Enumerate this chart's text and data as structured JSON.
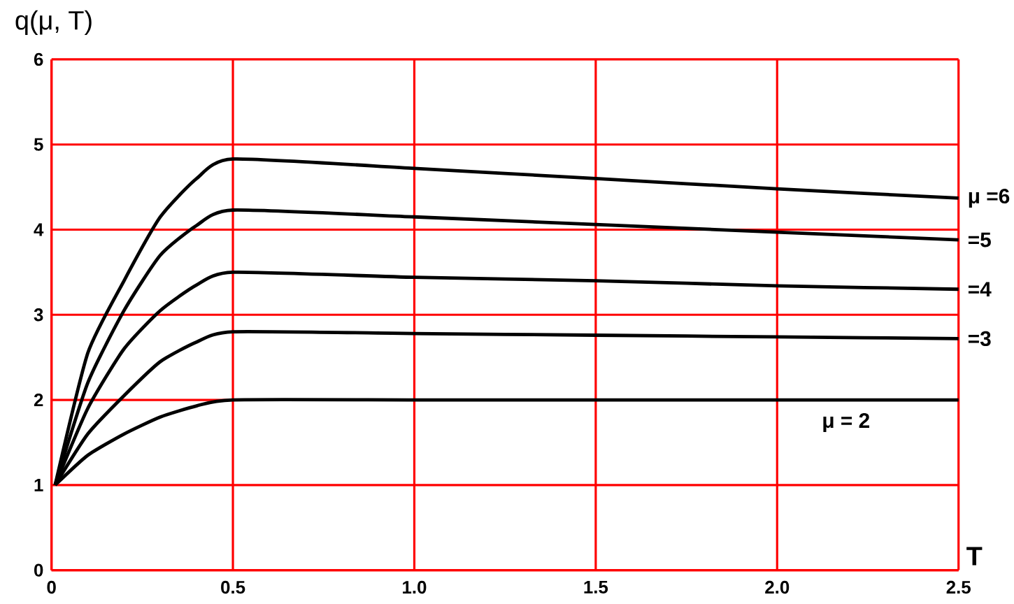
{
  "chart_data": {
    "type": "line",
    "ylabel": "q(μ, T)",
    "xlabel": "T",
    "x": [
      0.01,
      0.1,
      0.2,
      0.3,
      0.4,
      0.5,
      1.0,
      1.5,
      2.0,
      2.5
    ],
    "series": [
      {
        "name": "μ =6",
        "color": "#000000",
        "values": [
          1,
          2.55,
          3.4,
          4.15,
          4.6,
          4.83,
          4.72,
          4.6,
          4.48,
          4.37
        ]
      },
      {
        "name": "=5",
        "color": "#000000",
        "values": [
          1,
          2.2,
          3.05,
          3.7,
          4.05,
          4.23,
          4.15,
          4.06,
          3.97,
          3.88
        ]
      },
      {
        "name": "=4",
        "color": "#000000",
        "values": [
          1,
          1.9,
          2.6,
          3.05,
          3.35,
          3.5,
          3.44,
          3.4,
          3.34,
          3.3
        ]
      },
      {
        "name": "=3",
        "color": "#000000",
        "values": [
          1,
          1.6,
          2.05,
          2.45,
          2.68,
          2.8,
          2.78,
          2.76,
          2.74,
          2.72
        ]
      },
      {
        "name": "μ = 2",
        "color": "#000000",
        "values": [
          1,
          1.35,
          1.6,
          1.8,
          1.93,
          2.0,
          2.0,
          2.0,
          2.0,
          2.0
        ]
      }
    ],
    "xlim": [
      0,
      2.5
    ],
    "ylim": [
      0,
      6
    ],
    "xticks": [
      0,
      0.5,
      {
        "value": 1,
        "label": "1.0"
      },
      1.5,
      {
        "value": 2,
        "label": "2.0"
      },
      2.5
    ],
    "yticks": [
      0,
      1,
      2,
      3,
      4,
      5,
      6
    ],
    "grid": true,
    "marker": "none",
    "line_style": "solid"
  }
}
